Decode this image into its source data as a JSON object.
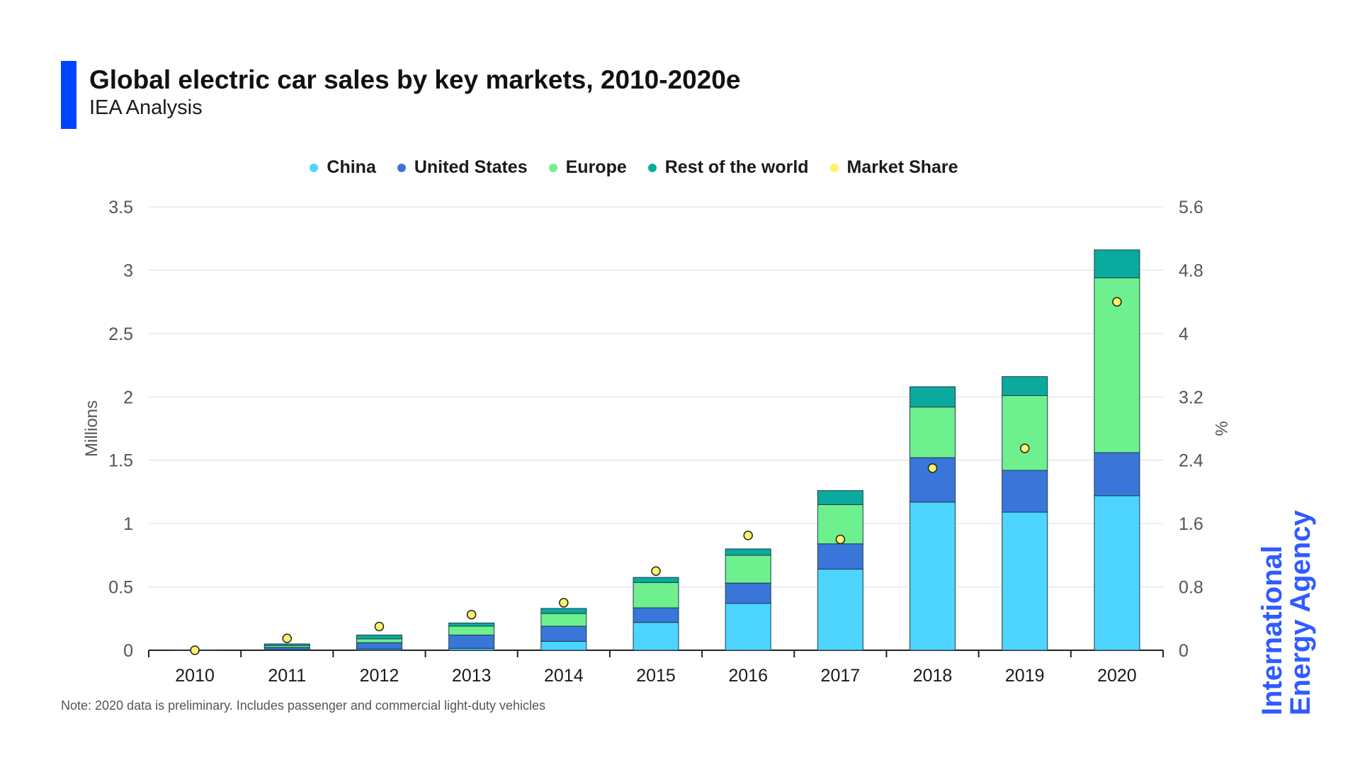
{
  "header": {
    "title": "Global electric car sales by key markets, 2010-2020e",
    "subtitle": "IEA Analysis"
  },
  "note": "Note: 2020 data is preliminary. Includes passenger and commercial light-duty vehicles",
  "logo": {
    "line1": "International",
    "line2": "Energy Agency"
  },
  "colors": {
    "China": "#4dd4ff",
    "United States": "#3a76d9",
    "Europe": "#6ef08f",
    "Rest of the world": "#0aab9e",
    "Market Share": "#fff36b",
    "accent": "#0044ff"
  },
  "chart_data": {
    "type": "bar",
    "stacked": true,
    "categories": [
      "2010",
      "2011",
      "2012",
      "2013",
      "2014",
      "2015",
      "2016",
      "2017",
      "2018",
      "2019",
      "2020"
    ],
    "series": [
      {
        "name": "China",
        "values": [
          0.001,
          0.005,
          0.01,
          0.015,
          0.07,
          0.22,
          0.37,
          0.64,
          1.17,
          1.09,
          1.22
        ]
      },
      {
        "name": "United States",
        "values": [
          0.0005,
          0.018,
          0.05,
          0.105,
          0.12,
          0.115,
          0.16,
          0.2,
          0.35,
          0.33,
          0.34
        ]
      },
      {
        "name": "Europe",
        "values": [
          0.001,
          0.015,
          0.03,
          0.07,
          0.1,
          0.2,
          0.22,
          0.31,
          0.4,
          0.59,
          1.38
        ]
      },
      {
        "name": "Rest of the world",
        "values": [
          0.0005,
          0.012,
          0.03,
          0.025,
          0.04,
          0.04,
          0.05,
          0.11,
          0.16,
          0.15,
          0.22
        ]
      }
    ],
    "market_share": {
      "name": "Market Share",
      "axis": "right",
      "values": [
        0.0,
        0.15,
        0.3,
        0.45,
        0.6,
        1.0,
        1.45,
        1.4,
        2.3,
        2.55,
        4.4
      ]
    },
    "left_axis": {
      "label": "Millions",
      "ylim": [
        0,
        3.5
      ],
      "ticks": [
        "0",
        "0.5",
        "1",
        "1.5",
        "2",
        "2.5",
        "3",
        "3.5"
      ]
    },
    "right_axis": {
      "label": "%",
      "ylim": [
        0,
        5.6
      ],
      "ticks": [
        "0",
        "0.8",
        "1.6",
        "2.4",
        "3.2",
        "4",
        "4.8",
        "5.6"
      ]
    },
    "grid": true,
    "legend_position": "top-center"
  }
}
